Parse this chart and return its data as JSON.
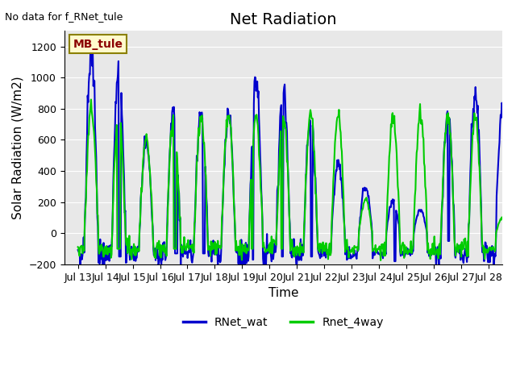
{
  "title": "Net Radiation",
  "xlabel": "Time",
  "ylabel": "Solar Radiation (W/m2)",
  "no_data_text": "No data for f_RNet_tule",
  "annotation_text": "MB_tule",
  "annotation_color": "#8B0000",
  "annotation_bg": "#FFFACD",
  "annotation_border": "#8B8000",
  "ylim": [
    -200,
    1300
  ],
  "yticks": [
    -200,
    0,
    200,
    400,
    600,
    800,
    1000,
    1200
  ],
  "xtick_labels": [
    "Jul 13",
    "Jul 14",
    "Jul 15",
    "Jul 16",
    "Jul 17",
    "Jul 18",
    "Jul 19",
    "Jul 20",
    "Jul 21",
    "Jul 22",
    "Jul 23",
    "Jul 24",
    "Jul 25",
    "Jul 26",
    "Jul 27",
    "Jul 28"
  ],
  "line1_color": "#0000CD",
  "line2_color": "#00CC00",
  "line1_label": "RNet_wat",
  "line2_label": "Rnet_4way",
  "line_width": 1.5,
  "bg_color": "#E8E8E8",
  "fig_bg": "#FFFFFF",
  "grid_color": "#FFFFFF",
  "title_fontsize": 14,
  "label_fontsize": 11,
  "tick_fontsize": 9,
  "blue_peaks": [
    1150,
    1050,
    600,
    800,
    750,
    760,
    970,
    930,
    730,
    450,
    300,
    210,
    150,
    760,
    900,
    840
  ],
  "green_peaks": [
    800,
    780,
    610,
    760,
    750,
    760,
    760,
    760,
    760,
    760,
    220,
    760,
    760,
    760,
    750,
    100
  ],
  "night_val_blue": -130,
  "night_val_green": -100,
  "n_days": 16,
  "pts_per_day": 48
}
